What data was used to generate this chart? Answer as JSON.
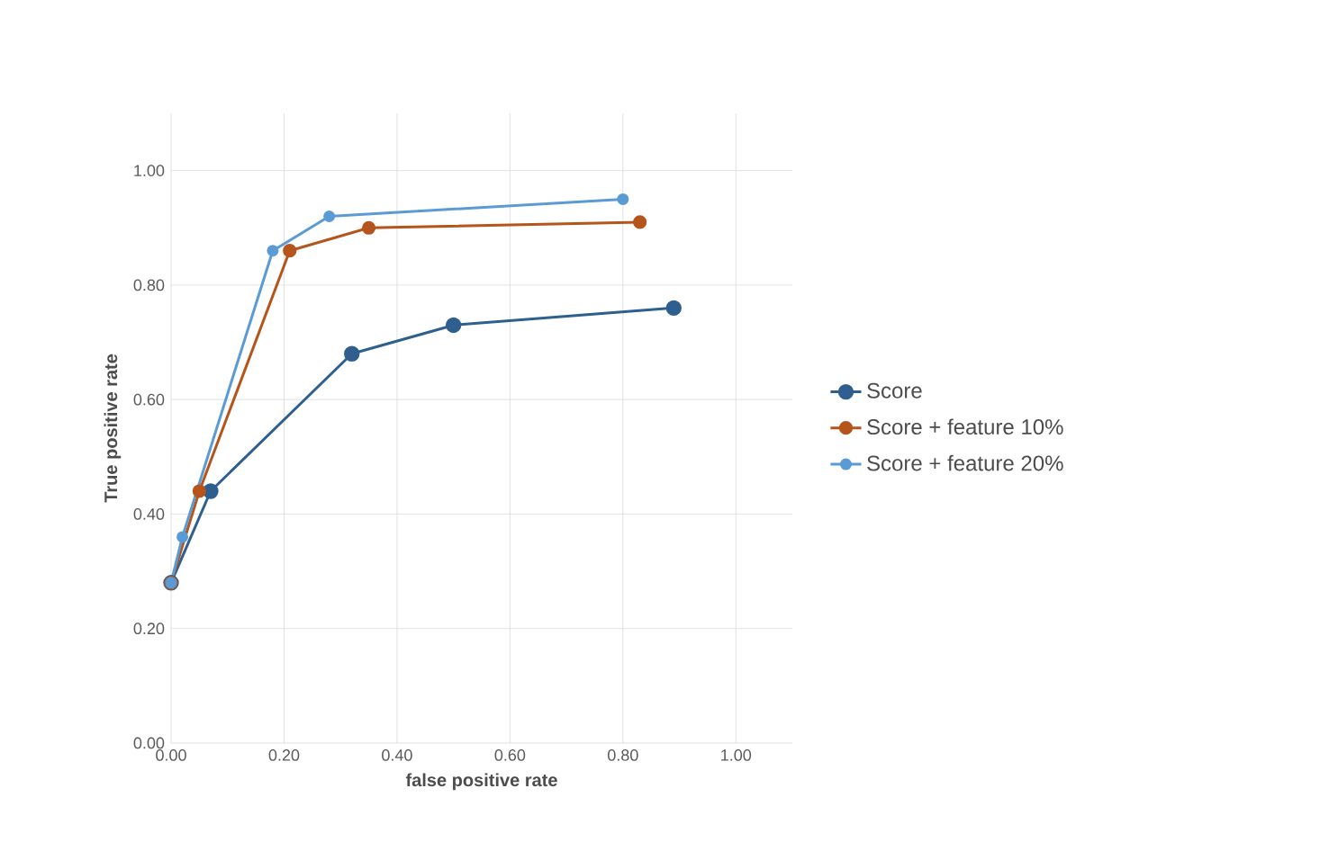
{
  "chart_data": {
    "type": "line",
    "xlabel": "false positive rate",
    "ylabel": "True positive rate",
    "xlim": [
      0,
      1.1
    ],
    "ylim": [
      0,
      1.1
    ],
    "xticks": [
      {
        "value": 0,
        "label": "0.00"
      },
      {
        "value": 0.2,
        "label": "0.20"
      },
      {
        "value": 0.4,
        "label": "0.40"
      },
      {
        "value": 0.6,
        "label": "0.60"
      },
      {
        "value": 0.8,
        "label": "0.80"
      },
      {
        "value": 1.0,
        "label": "1.00"
      }
    ],
    "yticks": [
      {
        "value": 0,
        "label": "0.00"
      },
      {
        "value": 0.2,
        "label": "0.20"
      },
      {
        "value": 0.4,
        "label": "0.40"
      },
      {
        "value": 0.6,
        "label": "0.60"
      },
      {
        "value": 0.8,
        "label": "0.80"
      },
      {
        "value": 1.0,
        "label": "1.00"
      }
    ],
    "grid": true,
    "legend": "right",
    "marker": "circle",
    "line_style": "solid",
    "series": [
      {
        "name": "Score",
        "color": "#2e5f8f",
        "x": [
          0,
          0.07,
          0.32,
          0.5,
          0.89
        ],
        "values": [
          0.28,
          0.44,
          0.68,
          0.73,
          0.76
        ]
      },
      {
        "name": "Score + feature 10%",
        "color": "#b5541b",
        "x": [
          0,
          0.05,
          0.21,
          0.35,
          0.83
        ],
        "values": [
          0.28,
          0.44,
          0.86,
          0.9,
          0.91
        ]
      },
      {
        "name": "Score + feature 20%",
        "color": "#5b9bd5",
        "x": [
          0,
          0.02,
          0.18,
          0.28,
          0.8
        ],
        "values": [
          0.28,
          0.36,
          0.86,
          0.92,
          0.95
        ]
      }
    ]
  }
}
